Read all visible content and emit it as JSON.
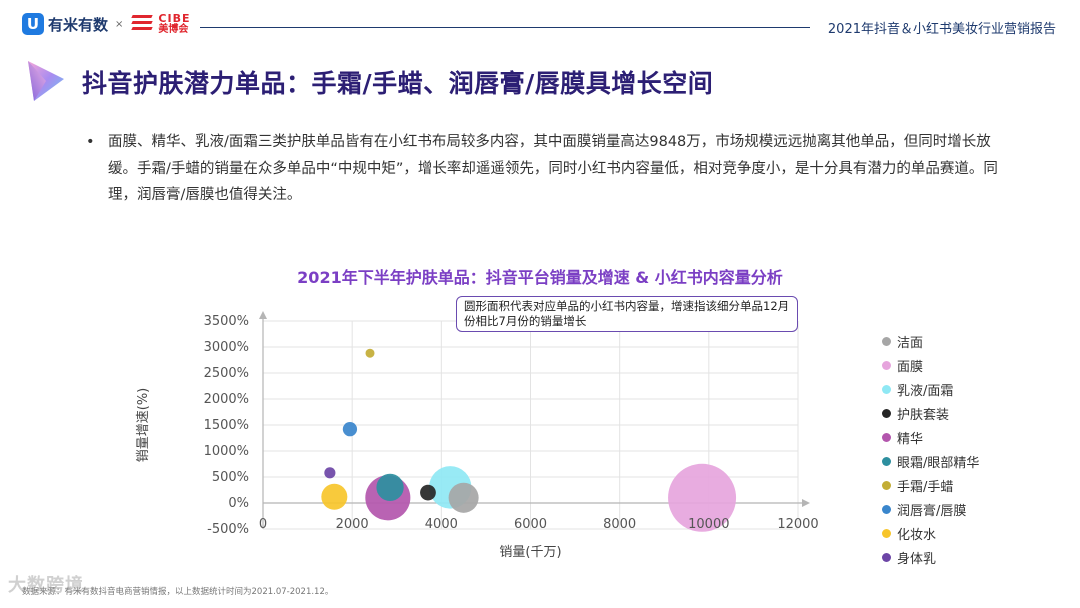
{
  "header": {
    "logo_text": "有米有数",
    "logo_separator": "×",
    "partner_logo_en": "CIBE",
    "partner_logo_cn": "美博会",
    "report_title": "2021年抖音＆小红书美妆行业营销报告"
  },
  "page_title": "抖音护肤潜力单品：手霜/手蜡、润唇膏/唇膜具增长空间",
  "bullet": {
    "marker": "•",
    "text": "面膜、精华、乳液/面霜三类护肤单品皆有在小红书布局较多内容，其中面膜销量高达9848万，市场规模远远抛离其他单品，但同时增长放缓。手霜/手蜡的销量在众多单品中“中规中矩”，增长率却遥遥领先，同时小红书内容量低，相对竞争度小，是十分具有潜力的单品赛道。同理，润唇膏/唇膜也值得关注。"
  },
  "chart_note": "圆形面积代表对应单品的小红书内容量，增速指该细分单品12月份相比7月份的销量增长",
  "footnote": "数据来源：有米有数抖音电商营销情报，以上数据统计时间为2021.07-2021.12。",
  "watermark": "大数跨境",
  "chart_data": {
    "type": "scatter",
    "bubble": true,
    "title": "2021年下半年护肤单品：抖音平台销量及增速  & 小红书内容量分析",
    "xlabel": "销量(千万)",
    "ylabel": "销量增速(%)",
    "xlim": [
      0,
      12000
    ],
    "ylim": [
      -500,
      3500
    ],
    "xticks": [
      0,
      2000,
      4000,
      6000,
      8000,
      10000,
      12000
    ],
    "yticks": [
      -500,
      0,
      500,
      1000,
      1500,
      2000,
      2500,
      3000,
      3500
    ],
    "ytick_suffix": "%",
    "grid": true,
    "legend_position": "right",
    "series": [
      {
        "name": "洁面",
        "color": "#a6a6a6",
        "x": 4500,
        "y": 100,
        "size": 400
      },
      {
        "name": "面膜",
        "color": "#e6a5dd",
        "x": 9848,
        "y": 100,
        "size": 2050
      },
      {
        "name": "乳液/面霜",
        "color": "#8fe8f4",
        "x": 4200,
        "y": 300,
        "size": 800
      },
      {
        "name": "护肤套装",
        "color": "#262626",
        "x": 3700,
        "y": 200,
        "size": 110
      },
      {
        "name": "精华",
        "color": "#b356ad",
        "x": 2800,
        "y": 100,
        "size": 900
      },
      {
        "name": "眼霜/眼部精华",
        "color": "#2d8f9f",
        "x": 2850,
        "y": 300,
        "size": 330
      },
      {
        "name": "手霜/手蜡",
        "color": "#c3ad35",
        "x": 2400,
        "y": 2880,
        "size": 25
      },
      {
        "name": "润唇膏/唇膜",
        "color": "#3a86cc",
        "x": 1950,
        "y": 1420,
        "size": 90
      },
      {
        "name": "化妆水",
        "color": "#f7c52b",
        "x": 1600,
        "y": 120,
        "size": 300
      },
      {
        "name": "身体乳",
        "color": "#6c45a6",
        "x": 1500,
        "y": 580,
        "size": 55
      }
    ]
  }
}
